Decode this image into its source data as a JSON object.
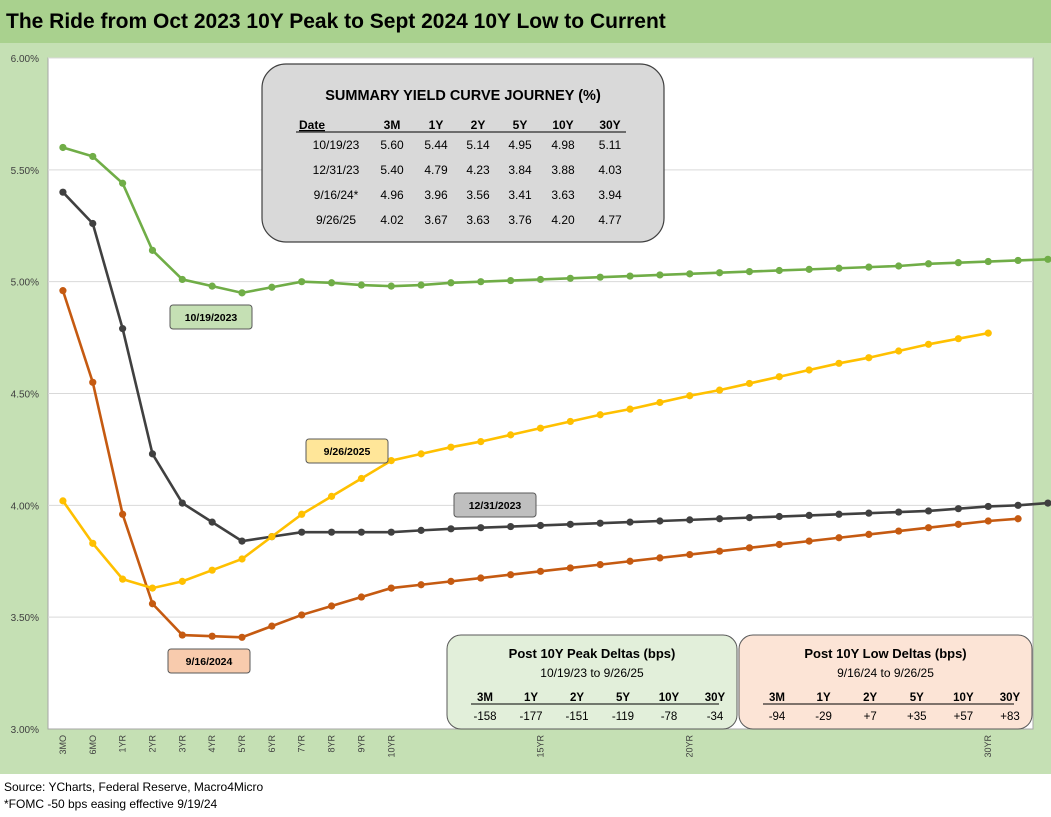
{
  "title": "The Ride from Oct 2023 10Y Peak to Sept 2024 10Y Low to Current",
  "source": "Source: YCharts, Federal Reserve, Macro4Micro",
  "note": "*FOMC -50 bps easing effective  9/19/24",
  "chart_data": {
    "type": "line",
    "x_ticks": [
      "3MO",
      "6MO",
      "1YR",
      "2YR",
      "3YR",
      "4YR",
      "5YR",
      "6YR",
      "7YR",
      "8YR",
      "9YR",
      "10YR",
      "15YR",
      "20YR",
      "30YR"
    ],
    "ylim": [
      3.0,
      6.0
    ],
    "y_ticks": [
      "3.00%",
      "3.50%",
      "4.00%",
      "4.50%",
      "5.00%",
      "5.50%",
      "6.00%"
    ],
    "grid": "horizontal",
    "series": [
      {
        "name": "10/19/2023",
        "color": "#70ad47",
        "label_bg": "#c5e0b4",
        "values": [
          5.6,
          5.56,
          5.44,
          5.14,
          5.01,
          4.98,
          4.95,
          4.975,
          5.0,
          4.995,
          4.985,
          4.98,
          4.985,
          4.995,
          5.0,
          5.005,
          5.01,
          5.015,
          5.02,
          5.025,
          5.03,
          5.035,
          5.04,
          5.045,
          5.05,
          5.055,
          5.06,
          5.065,
          5.07,
          5.08,
          5.085,
          5.09,
          5.095,
          5.1,
          5.105,
          5.11
        ]
      },
      {
        "name": "12/31/2023",
        "color": "#404040",
        "label_bg": "#bfbfbf",
        "values": [
          5.4,
          5.26,
          4.79,
          4.23,
          4.01,
          3.925,
          3.84,
          3.86,
          3.88,
          3.88,
          3.88,
          3.88,
          3.888,
          3.895,
          3.9,
          3.905,
          3.91,
          3.915,
          3.92,
          3.925,
          3.93,
          3.935,
          3.94,
          3.945,
          3.95,
          3.955,
          3.96,
          3.965,
          3.97,
          3.975,
          3.985,
          3.995,
          4.0,
          4.01,
          4.02,
          4.03
        ]
      },
      {
        "name": "9/16/2024",
        "color": "#c55a11",
        "label_bg": "#f8cbad",
        "values": [
          4.96,
          4.55,
          3.96,
          3.56,
          3.42,
          3.415,
          3.41,
          3.46,
          3.51,
          3.55,
          3.59,
          3.63,
          3.645,
          3.66,
          3.675,
          3.69,
          3.705,
          3.72,
          3.735,
          3.75,
          3.765,
          3.78,
          3.795,
          3.81,
          3.825,
          3.84,
          3.855,
          3.87,
          3.885,
          3.9,
          3.915,
          3.93,
          3.94
        ]
      },
      {
        "name": "9/26/2025",
        "color": "#ffc000",
        "label_bg": "#ffe699",
        "values": [
          4.02,
          3.83,
          3.67,
          3.63,
          3.66,
          3.71,
          3.76,
          3.86,
          3.96,
          4.04,
          4.12,
          4.2,
          4.23,
          4.26,
          4.285,
          4.315,
          4.345,
          4.375,
          4.405,
          4.43,
          4.46,
          4.49,
          4.515,
          4.545,
          4.575,
          4.605,
          4.635,
          4.66,
          4.69,
          4.72,
          4.745,
          4.77
        ]
      }
    ],
    "summary_box": {
      "title": "SUMMARY YIELD CURVE JOURNEY (%)",
      "headers": [
        "Date",
        "3M",
        "1Y",
        "2Y",
        "5Y",
        "10Y",
        "30Y"
      ],
      "rows": [
        [
          "10/19/23",
          "5.60",
          "5.44",
          "5.14",
          "4.95",
          "4.98",
          "5.11"
        ],
        [
          "12/31/23",
          "5.40",
          "4.79",
          "4.23",
          "3.84",
          "3.88",
          "4.03"
        ],
        [
          "9/16/24*",
          "4.96",
          "3.96",
          "3.56",
          "3.41",
          "3.63",
          "3.94"
        ],
        [
          "9/26/25",
          "4.02",
          "3.67",
          "3.63",
          "3.76",
          "4.20",
          "4.77"
        ]
      ]
    },
    "peak_box": {
      "title": "Post 10Y Peak Deltas (bps)",
      "subtitle": "10/19/23 to 9/26/25",
      "headers": [
        "3M",
        "1Y",
        "2Y",
        "5Y",
        "10Y",
        "30Y"
      ],
      "values": [
        "-158",
        "-177",
        "-151",
        "-119",
        "-78",
        "-34"
      ]
    },
    "low_box": {
      "title": "Post 10Y Low Deltas (bps)",
      "subtitle": "9/16/24 to 9/26/25",
      "headers": [
        "3M",
        "1Y",
        "2Y",
        "5Y",
        "10Y",
        "30Y"
      ],
      "values": [
        "-94",
        "-29",
        "+7",
        "+35",
        "+57",
        "+83"
      ]
    }
  }
}
